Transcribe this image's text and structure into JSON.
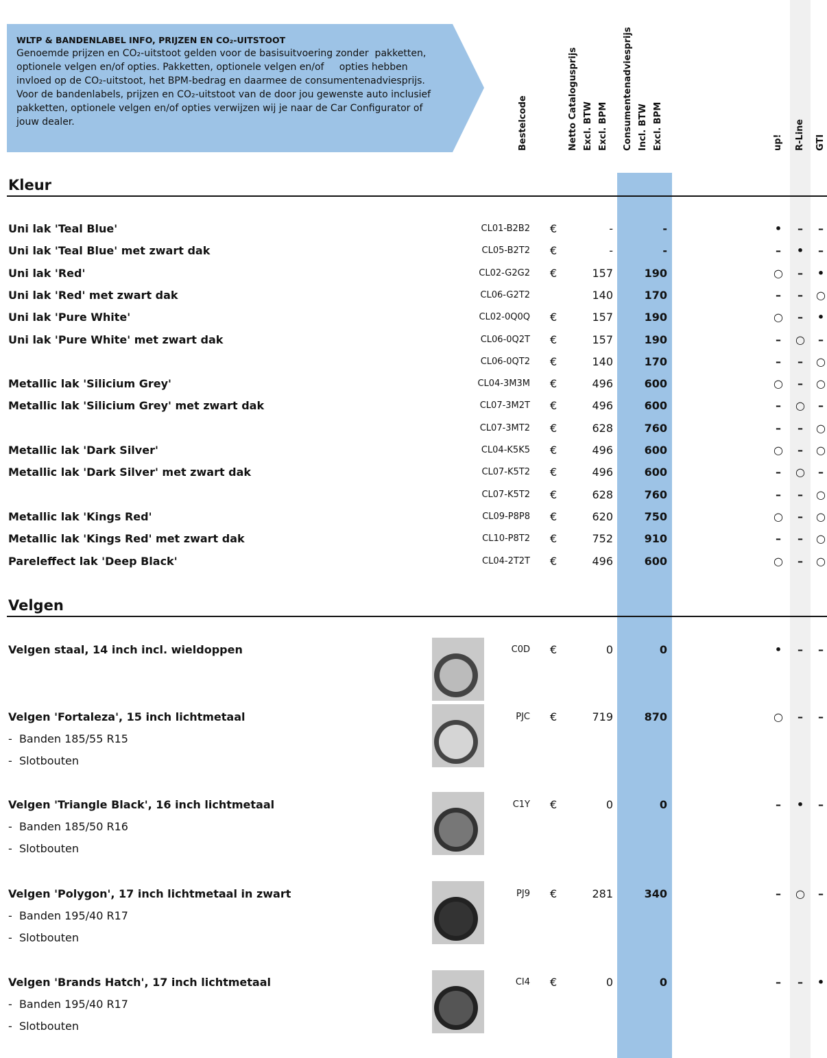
{
  "banner": {
    "title": "WLTP & BANDENLABEL INFO, PRIJZEN EN CO₂-UITSTOOT",
    "lines": [
      "Genoemde prijzen en CO₂-uitstoot gelden voor de basisuitvoering zonder  pakketten,",
      "optionele velgen en/of opties. Pakketten, optionele velgen en/of     opties hebben",
      "invloed op de CO₂-uitstoot, het BPM-bedrag en daarmee de consumentenadviesprijs.",
      "Voor de bandenlabels, prijzen en CO₂-uitstoot van de door jou gewenste auto inclusief",
      "pakketten, optionele velgen en/of opties verwijzen wij je naar de Car Configurator of",
      "jouw dealer."
    ]
  },
  "columns": {
    "code": "Bestelcode",
    "net": [
      "Netto Catalogusprijs",
      "Excl. BTW",
      "Excl. BPM"
    ],
    "consumer": [
      "Consumentenadviesprijs",
      "Incl. BTW",
      "Excl. BPM"
    ],
    "models": [
      "up!",
      "R-Line",
      "GTI"
    ]
  },
  "sections": [
    {
      "title": "Kleur",
      "rows": [
        {
          "name": "Uni lak 'Teal Blue'",
          "code": "CL01-B2B2",
          "currency": "€",
          "net": "-",
          "consumer": "-",
          "avail": [
            "•",
            "–",
            "–"
          ]
        },
        {
          "name": "Uni lak 'Teal Blue' met zwart dak",
          "code": "CL05-B2T2",
          "currency": "€",
          "net": "-",
          "consumer": "-",
          "avail": [
            "–",
            "•",
            "–"
          ]
        },
        {
          "name": "Uni lak 'Red'",
          "code": "CL02-G2G2",
          "currency": "€",
          "net": "157",
          "consumer": "190",
          "avail": [
            "○",
            "–",
            "•"
          ]
        },
        {
          "name": "Uni lak 'Red' met zwart dak",
          "code": "CL06-G2T2",
          "currency": null,
          "net": "140",
          "consumer": "170",
          "avail": [
            "–",
            "–",
            "○"
          ]
        },
        {
          "name": "Uni lak 'Pure White'",
          "code": "CL02-0Q0Q",
          "currency": "€",
          "net": "157",
          "consumer": "190",
          "avail": [
            "○",
            "–",
            "•"
          ]
        },
        {
          "name": "Uni lak 'Pure White' met zwart dak",
          "code": "CL06-0Q2T",
          "currency": "€",
          "net": "157",
          "consumer": "190",
          "avail": [
            "–",
            "○",
            "–"
          ]
        },
        {
          "name": null,
          "code": "CL06-0QT2",
          "currency": "€",
          "net": "140",
          "consumer": "170",
          "avail": [
            "–",
            "–",
            "○"
          ]
        },
        {
          "name": "Metallic lak 'Silicium Grey'",
          "code": "CL04-3M3M",
          "currency": "€",
          "net": "496",
          "consumer": "600",
          "avail": [
            "○",
            "–",
            "○"
          ]
        },
        {
          "name": "Metallic lak 'Silicium Grey' met zwart dak",
          "code": "CL07-3M2T",
          "currency": "€",
          "net": "496",
          "consumer": "600",
          "avail": [
            "–",
            "○",
            "–"
          ]
        },
        {
          "name": null,
          "code": "CL07-3MT2",
          "currency": "€",
          "net": "628",
          "consumer": "760",
          "avail": [
            "–",
            "–",
            "○"
          ]
        },
        {
          "name": "Metallic lak 'Dark Silver'",
          "code": "CL04-K5K5",
          "currency": "€",
          "net": "496",
          "consumer": "600",
          "avail": [
            "○",
            "–",
            "○"
          ]
        },
        {
          "name": "Metallic lak 'Dark Silver' met zwart dak",
          "code": "CL07-K5T2",
          "currency": "€",
          "net": "496",
          "consumer": "600",
          "avail": [
            "–",
            "○",
            "–"
          ]
        },
        {
          "name": null,
          "code": "CL07-K5T2",
          "currency": "€",
          "net": "628",
          "consumer": "760",
          "avail": [
            "–",
            "–",
            "○"
          ]
        },
        {
          "name": "Metallic lak 'Kings Red'",
          "code": "CL09-P8P8",
          "currency": "€",
          "net": "620",
          "consumer": "750",
          "avail": [
            "○",
            "–",
            "○"
          ]
        },
        {
          "name": "Metallic lak 'Kings Red' met zwart dak",
          "code": "CL10-P8T2",
          "currency": "€",
          "net": "752",
          "consumer": "910",
          "avail": [
            "–",
            "–",
            "○"
          ]
        },
        {
          "name": "Pareleffect lak 'Deep Black'",
          "code": "CL04-2T2T",
          "currency": "€",
          "net": "496",
          "consumer": "600",
          "avail": [
            "○",
            "–",
            "○"
          ]
        }
      ]
    },
    {
      "title": "Velgen",
      "rows": [
        {
          "name": "Velgen staal, 14 inch incl. wieldoppen",
          "code": "C0D",
          "currency": "€",
          "net": "0",
          "consumer": "0",
          "avail": [
            "•",
            "–",
            "–"
          ]
        },
        {
          "name": "Velgen 'Fortaleza', 15 inch lichtmetaal",
          "sub": [
            "-  Banden 185/55 R15",
            "-  Slotbouten"
          ],
          "code": "PJC",
          "currency": "€",
          "net": "719",
          "consumer": "870",
          "avail": [
            "○",
            "–",
            "–"
          ]
        },
        {
          "name": "Velgen 'Triangle Black', 16 inch lichtmetaal",
          "sub": [
            "-  Banden 185/50 R16",
            "-  Slotbouten"
          ],
          "code": "C1Y",
          "currency": "€",
          "net": "0",
          "consumer": "0",
          "avail": [
            "–",
            "•",
            "–"
          ]
        },
        {
          "name": "Velgen 'Polygon', 17 inch lichtmetaal in zwart",
          "sub": [
            "-  Banden 195/40 R17",
            "-  Slotbouten"
          ],
          "code": "PJ9",
          "currency": "€",
          "net": "281",
          "consumer": "340",
          "avail": [
            "–",
            "○",
            "–"
          ]
        },
        {
          "name": "Velgen 'Brands Hatch', 17 inch lichtmetaal",
          "sub": [
            "-  Banden 195/40 R17",
            "-  Slotbouten"
          ],
          "code": "CI4",
          "currency": "€",
          "net": "0",
          "consumer": "0",
          "avail": [
            "–",
            "–",
            "•"
          ]
        }
      ]
    }
  ]
}
